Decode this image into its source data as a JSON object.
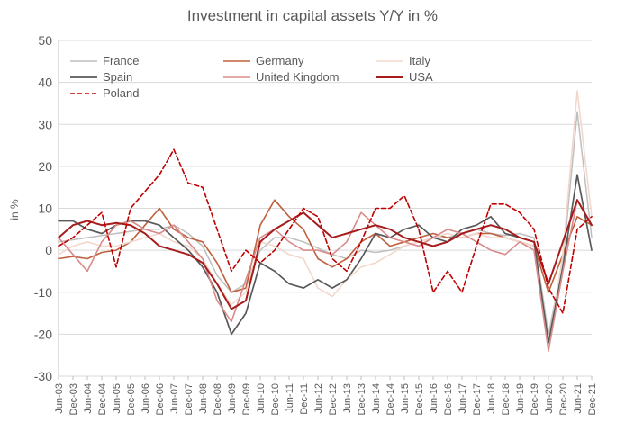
{
  "chart_data": {
    "type": "line",
    "title": "Investment in capital assets Y/Y in %",
    "ylabel": "in %",
    "xlabel": "",
    "ylim": [
      -30,
      50
    ],
    "yticks": [
      -30,
      -20,
      -10,
      0,
      10,
      20,
      30,
      40,
      50
    ],
    "grid": "horizontal",
    "legend_position": "top",
    "x_tick_labels": [
      "Jun-03",
      "Dec-03",
      "Jun-04",
      "Dec-04",
      "Jun-05",
      "Dec-05",
      "Jun-06",
      "Dec-06",
      "Jun-07",
      "Dec-07",
      "Jun-08",
      "Dec-08",
      "Jun-09",
      "Dec-09",
      "Jun-10",
      "Dec-10",
      "Jun-11",
      "Dec-11",
      "Jun-12",
      "Dec-12",
      "Jun-13",
      "Dec-13",
      "Jun-14",
      "Dec-14",
      "Jun-15",
      "Dec-15",
      "Jun-16",
      "Dec-16",
      "Jun-17",
      "Dec-17",
      "Jun-18",
      "Dec-18",
      "Jun-19",
      "Dec-19",
      "Jun-20",
      "Dec-20",
      "Jun-21",
      "Dec-21"
    ],
    "x_start": "Jun-03",
    "x_end": "Dec-21",
    "series": [
      {
        "name": "France",
        "color": "#bfbfbf",
        "dash": "",
        "width": 1.5,
        "points": [
          [
            "Jun-03",
            2
          ],
          [
            "Dec-03",
            2.5
          ],
          [
            "Jun-04",
            3
          ],
          [
            "Dec-04",
            3.5
          ],
          [
            "Jun-05",
            4
          ],
          [
            "Dec-05",
            4.5
          ],
          [
            "Jun-06",
            5
          ],
          [
            "Dec-06",
            5
          ],
          [
            "Jun-07",
            6
          ],
          [
            "Dec-07",
            4
          ],
          [
            "Jun-08",
            1
          ],
          [
            "Dec-08",
            -6
          ],
          [
            "Jun-09",
            -10
          ],
          [
            "Dec-09",
            -8
          ],
          [
            "Jun-10",
            0
          ],
          [
            "Dec-10",
            3
          ],
          [
            "Jun-11",
            3
          ],
          [
            "Dec-11",
            2
          ],
          [
            "Jun-12",
            0.5
          ],
          [
            "Dec-12",
            -1
          ],
          [
            "Jun-13",
            -2
          ],
          [
            "Dec-13",
            0
          ],
          [
            "Jun-14",
            -0.5
          ],
          [
            "Dec-14",
            0
          ],
          [
            "Jun-15",
            1
          ],
          [
            "Dec-15",
            2
          ],
          [
            "Jun-16",
            3
          ],
          [
            "Dec-16",
            3
          ],
          [
            "Jun-17",
            4
          ],
          [
            "Dec-17",
            5
          ],
          [
            "Jun-18",
            4
          ],
          [
            "Dec-18",
            3.5
          ],
          [
            "Jun-19",
            4
          ],
          [
            "Dec-19",
            3
          ],
          [
            "Jun-20",
            -20
          ],
          [
            "Dec-20",
            -3
          ],
          [
            "Jun-21",
            33
          ],
          [
            "Dec-21",
            3
          ]
        ]
      },
      {
        "name": "Germany",
        "color": "#c0603d",
        "dash": "",
        "width": 1.6,
        "points": [
          [
            "Jun-03",
            -2
          ],
          [
            "Dec-03",
            -1.5
          ],
          [
            "Jun-04",
            -2
          ],
          [
            "Dec-04",
            -0.5
          ],
          [
            "Jun-05",
            0
          ],
          [
            "Dec-05",
            2
          ],
          [
            "Jun-06",
            6
          ],
          [
            "Dec-06",
            10
          ],
          [
            "Jun-07",
            5
          ],
          [
            "Dec-07",
            3
          ],
          [
            "Jun-08",
            2
          ],
          [
            "Dec-08",
            -3
          ],
          [
            "Jun-09",
            -10
          ],
          [
            "Dec-09",
            -9
          ],
          [
            "Jun-10",
            6
          ],
          [
            "Dec-10",
            12
          ],
          [
            "Jun-11",
            8
          ],
          [
            "Dec-11",
            5
          ],
          [
            "Jun-12",
            -2
          ],
          [
            "Dec-12",
            -4
          ],
          [
            "Jun-13",
            -2
          ],
          [
            "Dec-13",
            2
          ],
          [
            "Jun-14",
            4
          ],
          [
            "Dec-14",
            1
          ],
          [
            "Jun-15",
            2
          ],
          [
            "Dec-15",
            3
          ],
          [
            "Jun-16",
            4
          ],
          [
            "Dec-16",
            3
          ],
          [
            "Jun-17",
            3
          ],
          [
            "Dec-17",
            4
          ],
          [
            "Jun-18",
            4
          ],
          [
            "Dec-18",
            3
          ],
          [
            "Jun-19",
            2
          ],
          [
            "Dec-19",
            1
          ],
          [
            "Jun-20",
            -10
          ],
          [
            "Dec-20",
            -1
          ],
          [
            "Jun-21",
            8
          ],
          [
            "Dec-21",
            6
          ]
        ]
      },
      {
        "name": "Italy",
        "color": "#f2d8cc",
        "dash": "",
        "width": 1.6,
        "points": [
          [
            "Jun-03",
            -1
          ],
          [
            "Dec-03",
            1
          ],
          [
            "Jun-04",
            2
          ],
          [
            "Dec-04",
            1
          ],
          [
            "Jun-05",
            1
          ],
          [
            "Dec-05",
            2
          ],
          [
            "Jun-06",
            3
          ],
          [
            "Dec-06",
            4
          ],
          [
            "Jun-07",
            2
          ],
          [
            "Dec-07",
            1
          ],
          [
            "Jun-08",
            -2
          ],
          [
            "Dec-08",
            -8
          ],
          [
            "Jun-09",
            -13
          ],
          [
            "Dec-09",
            -10
          ],
          [
            "Jun-10",
            2
          ],
          [
            "Dec-10",
            1
          ],
          [
            "Jun-11",
            -1
          ],
          [
            "Dec-11",
            -2
          ],
          [
            "Jun-12",
            -9
          ],
          [
            "Dec-12",
            -11
          ],
          [
            "Jun-13",
            -7
          ],
          [
            "Dec-13",
            -4
          ],
          [
            "Jun-14",
            -3
          ],
          [
            "Dec-14",
            -1
          ],
          [
            "Jun-15",
            1
          ],
          [
            "Dec-15",
            2
          ],
          [
            "Jun-16",
            3
          ],
          [
            "Dec-16",
            4
          ],
          [
            "Jun-17",
            3
          ],
          [
            "Dec-17",
            4
          ],
          [
            "Jun-18",
            3
          ],
          [
            "Dec-18",
            3
          ],
          [
            "Jun-19",
            2
          ],
          [
            "Dec-19",
            1
          ],
          [
            "Jun-20",
            -23
          ],
          [
            "Dec-20",
            -1
          ],
          [
            "Jun-21",
            38
          ],
          [
            "Dec-21",
            8
          ]
        ]
      },
      {
        "name": "Spain",
        "color": "#595959",
        "dash": "",
        "width": 1.7,
        "points": [
          [
            "Jun-03",
            7
          ],
          [
            "Dec-03",
            7
          ],
          [
            "Jun-04",
            5
          ],
          [
            "Dec-04",
            4
          ],
          [
            "Jun-05",
            6
          ],
          [
            "Dec-05",
            7
          ],
          [
            "Jun-06",
            7
          ],
          [
            "Dec-06",
            6
          ],
          [
            "Jun-07",
            3
          ],
          [
            "Dec-07",
            0
          ],
          [
            "Jun-08",
            -4
          ],
          [
            "Dec-08",
            -10
          ],
          [
            "Jun-09",
            -20
          ],
          [
            "Dec-09",
            -15
          ],
          [
            "Jun-10",
            -3
          ],
          [
            "Dec-10",
            -5
          ],
          [
            "Jun-11",
            -8
          ],
          [
            "Dec-11",
            -9
          ],
          [
            "Jun-12",
            -7
          ],
          [
            "Dec-12",
            -9
          ],
          [
            "Jun-13",
            -7
          ],
          [
            "Dec-13",
            -2
          ],
          [
            "Jun-14",
            4
          ],
          [
            "Dec-14",
            3
          ],
          [
            "Jun-15",
            5
          ],
          [
            "Dec-15",
            6
          ],
          [
            "Jun-16",
            3
          ],
          [
            "Dec-16",
            2
          ],
          [
            "Jun-17",
            5
          ],
          [
            "Dec-17",
            6
          ],
          [
            "Jun-18",
            8
          ],
          [
            "Dec-18",
            4
          ],
          [
            "Jun-19",
            3
          ],
          [
            "Dec-19",
            2
          ],
          [
            "Jun-20",
            -22
          ],
          [
            "Dec-20",
            -4
          ],
          [
            "Jun-21",
            18
          ],
          [
            "Dec-21",
            0
          ]
        ]
      },
      {
        "name": "United Kingdom",
        "color": "#d98a8a",
        "dash": "",
        "width": 1.6,
        "points": [
          [
            "Jun-03",
            3
          ],
          [
            "Dec-03",
            -1
          ],
          [
            "Jun-04",
            -5
          ],
          [
            "Dec-04",
            2
          ],
          [
            "Jun-05",
            6
          ],
          [
            "Dec-05",
            7
          ],
          [
            "Jun-06",
            5
          ],
          [
            "Dec-06",
            4
          ],
          [
            "Jun-07",
            6
          ],
          [
            "Dec-07",
            2
          ],
          [
            "Jun-08",
            -2
          ],
          [
            "Dec-08",
            -12
          ],
          [
            "Jun-09",
            -17
          ],
          [
            "Dec-09",
            -7
          ],
          [
            "Jun-10",
            3
          ],
          [
            "Dec-10",
            5
          ],
          [
            "Jun-11",
            2
          ],
          [
            "Dec-11",
            0
          ],
          [
            "Jun-12",
            0
          ],
          [
            "Dec-12",
            -1
          ],
          [
            "Jun-13",
            2
          ],
          [
            "Dec-13",
            9
          ],
          [
            "Jun-14",
            6
          ],
          [
            "Dec-14",
            3
          ],
          [
            "Jun-15",
            2
          ],
          [
            "Dec-15",
            1
          ],
          [
            "Jun-16",
            3
          ],
          [
            "Dec-16",
            5
          ],
          [
            "Jun-17",
            4
          ],
          [
            "Dec-17",
            2
          ],
          [
            "Jun-18",
            0
          ],
          [
            "Dec-18",
            -1
          ],
          [
            "Jun-19",
            2
          ],
          [
            "Dec-19",
            0
          ],
          [
            "Jun-20",
            -24
          ],
          [
            "Dec-20",
            -5
          ],
          [
            "Jun-21",
            12
          ],
          [
            "Dec-21",
            6
          ]
        ]
      },
      {
        "name": "USA",
        "color": "#a61c1c",
        "dash": "",
        "width": 2,
        "points": [
          [
            "Jun-03",
            3
          ],
          [
            "Dec-03",
            6
          ],
          [
            "Jun-04",
            7
          ],
          [
            "Dec-04",
            6
          ],
          [
            "Jun-05",
            6.5
          ],
          [
            "Dec-05",
            6
          ],
          [
            "Jun-06",
            4
          ],
          [
            "Dec-06",
            1
          ],
          [
            "Jun-07",
            0
          ],
          [
            "Dec-07",
            -1
          ],
          [
            "Jun-08",
            -3
          ],
          [
            "Dec-08",
            -8
          ],
          [
            "Jun-09",
            -14
          ],
          [
            "Dec-09",
            -12
          ],
          [
            "Jun-10",
            2
          ],
          [
            "Dec-10",
            5
          ],
          [
            "Jun-11",
            7
          ],
          [
            "Dec-11",
            9
          ],
          [
            "Jun-12",
            6
          ],
          [
            "Dec-12",
            3
          ],
          [
            "Jun-13",
            4
          ],
          [
            "Dec-13",
            5
          ],
          [
            "Jun-14",
            6
          ],
          [
            "Dec-14",
            5
          ],
          [
            "Jun-15",
            3
          ],
          [
            "Dec-15",
            2
          ],
          [
            "Jun-16",
            1
          ],
          [
            "Dec-16",
            2
          ],
          [
            "Jun-17",
            4
          ],
          [
            "Dec-17",
            5
          ],
          [
            "Jun-18",
            6
          ],
          [
            "Dec-18",
            5
          ],
          [
            "Jun-19",
            3
          ],
          [
            "Dec-19",
            2
          ],
          [
            "Jun-20",
            -8
          ],
          [
            "Dec-20",
            2
          ],
          [
            "Jun-21",
            12
          ],
          [
            "Dec-21",
            6
          ]
        ]
      },
      {
        "name": "Poland",
        "color": "#c00000",
        "dash": "5,3",
        "width": 1.6,
        "points": [
          [
            "Jun-03",
            1
          ],
          [
            "Dec-03",
            3
          ],
          [
            "Jun-04",
            6
          ],
          [
            "Dec-04",
            9
          ],
          [
            "Jun-05",
            -4
          ],
          [
            "Dec-05",
            10
          ],
          [
            "Jun-06",
            14
          ],
          [
            "Dec-06",
            18
          ],
          [
            "Jun-07",
            24
          ],
          [
            "Dec-07",
            16
          ],
          [
            "Jun-08",
            15
          ],
          [
            "Dec-08",
            5
          ],
          [
            "Jun-09",
            -5
          ],
          [
            "Dec-09",
            0
          ],
          [
            "Jun-10",
            -3
          ],
          [
            "Dec-10",
            0
          ],
          [
            "Jun-11",
            5
          ],
          [
            "Dec-11",
            10
          ],
          [
            "Jun-12",
            8
          ],
          [
            "Dec-12",
            -2
          ],
          [
            "Jun-13",
            -5
          ],
          [
            "Dec-13",
            2
          ],
          [
            "Jun-14",
            10
          ],
          [
            "Dec-14",
            10
          ],
          [
            "Jun-15",
            13
          ],
          [
            "Dec-15",
            5
          ],
          [
            "Jun-16",
            -10
          ],
          [
            "Dec-16",
            -5
          ],
          [
            "Jun-17",
            -10
          ],
          [
            "Dec-17",
            1
          ],
          [
            "Jun-18",
            11
          ],
          [
            "Dec-18",
            11
          ],
          [
            "Jun-19",
            9
          ],
          [
            "Dec-19",
            5
          ],
          [
            "Jun-20",
            -9
          ],
          [
            "Dec-20",
            -15
          ],
          [
            "Jun-21",
            5
          ],
          [
            "Dec-21",
            8
          ]
        ]
      }
    ]
  }
}
